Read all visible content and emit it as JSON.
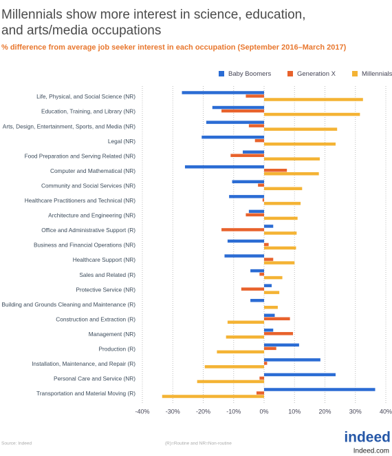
{
  "chart_data": {
    "type": "hbar",
    "title": "Millennials show more interest in science, education, and arts/media occupations",
    "subtitle": "% difference from average job seeker interest in each occupation (September 2016–March 2017)",
    "categories": [
      "Life, Physical, and Social Science (NR)",
      "Education, Training, and Library (NR)",
      "Arts, Design, Entertainment, Sports, and Media (NR)",
      "Legal (NR)",
      "Food Preparation and Serving Related (NR)",
      "Computer and Mathematical (NR)",
      "Community and Social Services (NR)",
      "Healthcare Practitioners and Technical (NR)",
      "Architecture and Engineering (NR)",
      "Office and Administrative Support (R)",
      "Business and Financial Operations (NR)",
      "Healthcare Support (NR)",
      "Sales and Related (R)",
      "Protective Service (NR)",
      "Building and Grounds Cleaning and Maintenance (R)",
      "Construction and Extraction (R)",
      "Management (NR)",
      "Production (R)",
      "Installation, Maintenance, and Repair (R)",
      "Personal Care and Service (NR)",
      "Transportation and Material Moving (R)"
    ],
    "series": [
      {
        "name": "Baby Boomers",
        "color": "#2b6cd4",
        "values": [
          -27,
          -17,
          -19,
          -20.5,
          -7,
          -26,
          -10.5,
          -11.5,
          -5,
          3,
          -12,
          -13,
          -4.5,
          2.5,
          -4.5,
          3.5,
          3,
          11.5,
          18.5,
          23.5,
          36.5
        ]
      },
      {
        "name": "Generation X",
        "color": "#e8622c",
        "values": [
          -6,
          -14,
          -5,
          -3,
          -11,
          7.5,
          -2,
          -0.5,
          -6,
          -14,
          1.5,
          3,
          -1.5,
          -7.5,
          0,
          8.5,
          9.5,
          4,
          1,
          -1.5,
          -2.5
        ]
      },
      {
        "name": "Millennials",
        "color": "#f4b334",
        "values": [
          32.5,
          31.5,
          24,
          23.5,
          18.3,
          18,
          12.5,
          12,
          11,
          10.7,
          10.5,
          10,
          6,
          5,
          4.5,
          -12,
          -12.5,
          -15.5,
          -19.5,
          -22,
          -33.5
        ]
      }
    ],
    "xlim": [
      -40,
      40
    ],
    "xticks": [
      {
        "value": -40,
        "label": "-40%"
      },
      {
        "value": -30,
        "label": "-30%"
      },
      {
        "value": -20,
        "label": "-20%"
      },
      {
        "value": -10,
        "label": "-10%"
      },
      {
        "value": 0,
        "label": "0%"
      },
      {
        "value": 10,
        "label": "10%"
      },
      {
        "value": 20,
        "label": "20%"
      },
      {
        "value": 30,
        "label": "30%"
      },
      {
        "value": 40,
        "label": "40%"
      }
    ],
    "grid": true,
    "legend": "upper right",
    "source": "Source: Indeed",
    "note": "(R)=Routine and NR=Non-routine"
  },
  "footer": {
    "logo": "indeed",
    "site": "Indeed.com"
  }
}
